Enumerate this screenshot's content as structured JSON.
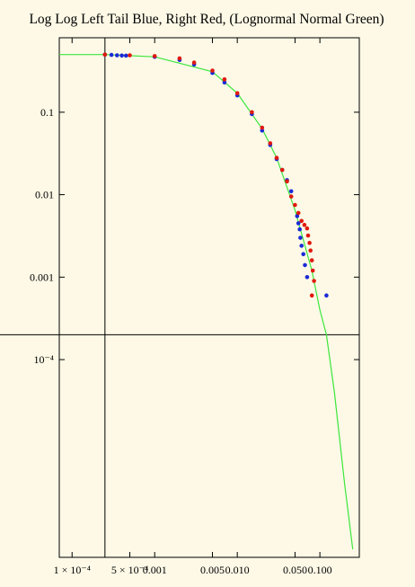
{
  "chart_data": {
    "type": "scatter",
    "title": "Log Log Left Tail Blue, Right Red, (Lognormal Normal Green)",
    "xlabel": "",
    "ylabel": "",
    "x_scale": "log",
    "y_scale": "log",
    "xlim": [
      7e-05,
      0.3
    ],
    "ylim": [
      4e-07,
      0.8
    ],
    "x_ticks": [
      {
        "value": 0.0001,
        "label": "1 × 10⁻⁴"
      },
      {
        "value": 0.0005,
        "label": "5 × 10⁻⁴"
      },
      {
        "value": 0.001,
        "label": "0.001"
      },
      {
        "value": 0.005,
        "label": "0.005"
      },
      {
        "value": 0.01,
        "label": "0.010"
      },
      {
        "value": 0.05,
        "label": "0.050"
      },
      {
        "value": 0.1,
        "label": "0.100"
      }
    ],
    "y_ticks": [
      {
        "value": 0.1,
        "label": "0.1"
      },
      {
        "value": 0.01,
        "label": "0.01"
      },
      {
        "value": 0.001,
        "label": "0.001"
      },
      {
        "value": 0.0001,
        "label": "10⁻⁴"
      }
    ],
    "reference_lines": {
      "vertical_x": 0.00025,
      "horizontal_y": 0.0002
    },
    "grid": false,
    "legend": "none",
    "colors": {
      "left_tail": "#1a2ad6",
      "right_tail": "#e0190f",
      "lognormal_fit": "#3ce63c",
      "axes": "#000000",
      "background": "#fdf9e6"
    },
    "series": [
      {
        "name": "Left Tail Blue",
        "color": "#1a2ad6",
        "points": [
          [
            0.00025,
            0.5
          ],
          [
            0.0003,
            0.495
          ],
          [
            0.00035,
            0.49
          ],
          [
            0.0004,
            0.487
          ],
          [
            0.00045,
            0.485
          ],
          [
            0.001,
            0.47
          ],
          [
            0.002,
            0.43
          ],
          [
            0.003,
            0.38
          ],
          [
            0.005,
            0.3
          ],
          [
            0.007,
            0.23
          ],
          [
            0.01,
            0.16
          ],
          [
            0.015,
            0.095
          ],
          [
            0.02,
            0.06
          ],
          [
            0.025,
            0.04
          ],
          [
            0.03,
            0.027
          ],
          [
            0.035,
            0.02
          ],
          [
            0.04,
            0.015
          ],
          [
            0.045,
            0.011
          ],
          [
            0.053,
            0.0055
          ],
          [
            0.055,
            0.0045
          ],
          [
            0.057,
            0.0038
          ],
          [
            0.058,
            0.003
          ],
          [
            0.06,
            0.0024
          ],
          [
            0.063,
            0.0019
          ],
          [
            0.066,
            0.0014
          ],
          [
            0.07,
            0.001
          ],
          [
            0.12,
            0.0006
          ]
        ]
      },
      {
        "name": "Right Tail Red",
        "color": "#e0190f",
        "points": [
          [
            0.00025,
            0.5
          ],
          [
            0.0005,
            0.49
          ],
          [
            0.001,
            0.48
          ],
          [
            0.002,
            0.45
          ],
          [
            0.003,
            0.4
          ],
          [
            0.005,
            0.32
          ],
          [
            0.007,
            0.25
          ],
          [
            0.01,
            0.17
          ],
          [
            0.015,
            0.1
          ],
          [
            0.02,
            0.065
          ],
          [
            0.025,
            0.042
          ],
          [
            0.03,
            0.028
          ],
          [
            0.035,
            0.02
          ],
          [
            0.04,
            0.0145
          ],
          [
            0.045,
            0.0095
          ],
          [
            0.05,
            0.0075
          ],
          [
            0.055,
            0.006
          ],
          [
            0.06,
            0.0048
          ],
          [
            0.065,
            0.0043
          ],
          [
            0.07,
            0.0039
          ],
          [
            0.072,
            0.0032
          ],
          [
            0.075,
            0.0026
          ],
          [
            0.077,
            0.0021
          ],
          [
            0.08,
            0.0016
          ],
          [
            0.082,
            0.0012
          ],
          [
            0.085,
            0.0009
          ],
          [
            0.08,
            0.0006
          ]
        ]
      },
      {
        "name": "Lognormal Normal Green",
        "color": "#3ce63c",
        "points": [
          [
            7e-05,
            0.5
          ],
          [
            0.00025,
            0.5
          ],
          [
            0.001,
            0.47
          ],
          [
            0.005,
            0.31
          ],
          [
            0.01,
            0.17
          ],
          [
            0.02,
            0.063
          ],
          [
            0.03,
            0.028
          ],
          [
            0.05,
            0.0065
          ],
          [
            0.08,
            0.0012
          ],
          [
            0.1,
            0.0004
          ],
          [
            0.12,
            0.0002
          ],
          [
            0.15,
            4e-05
          ],
          [
            0.2,
            3e-06
          ],
          [
            0.25,
            5e-07
          ]
        ]
      }
    ]
  }
}
